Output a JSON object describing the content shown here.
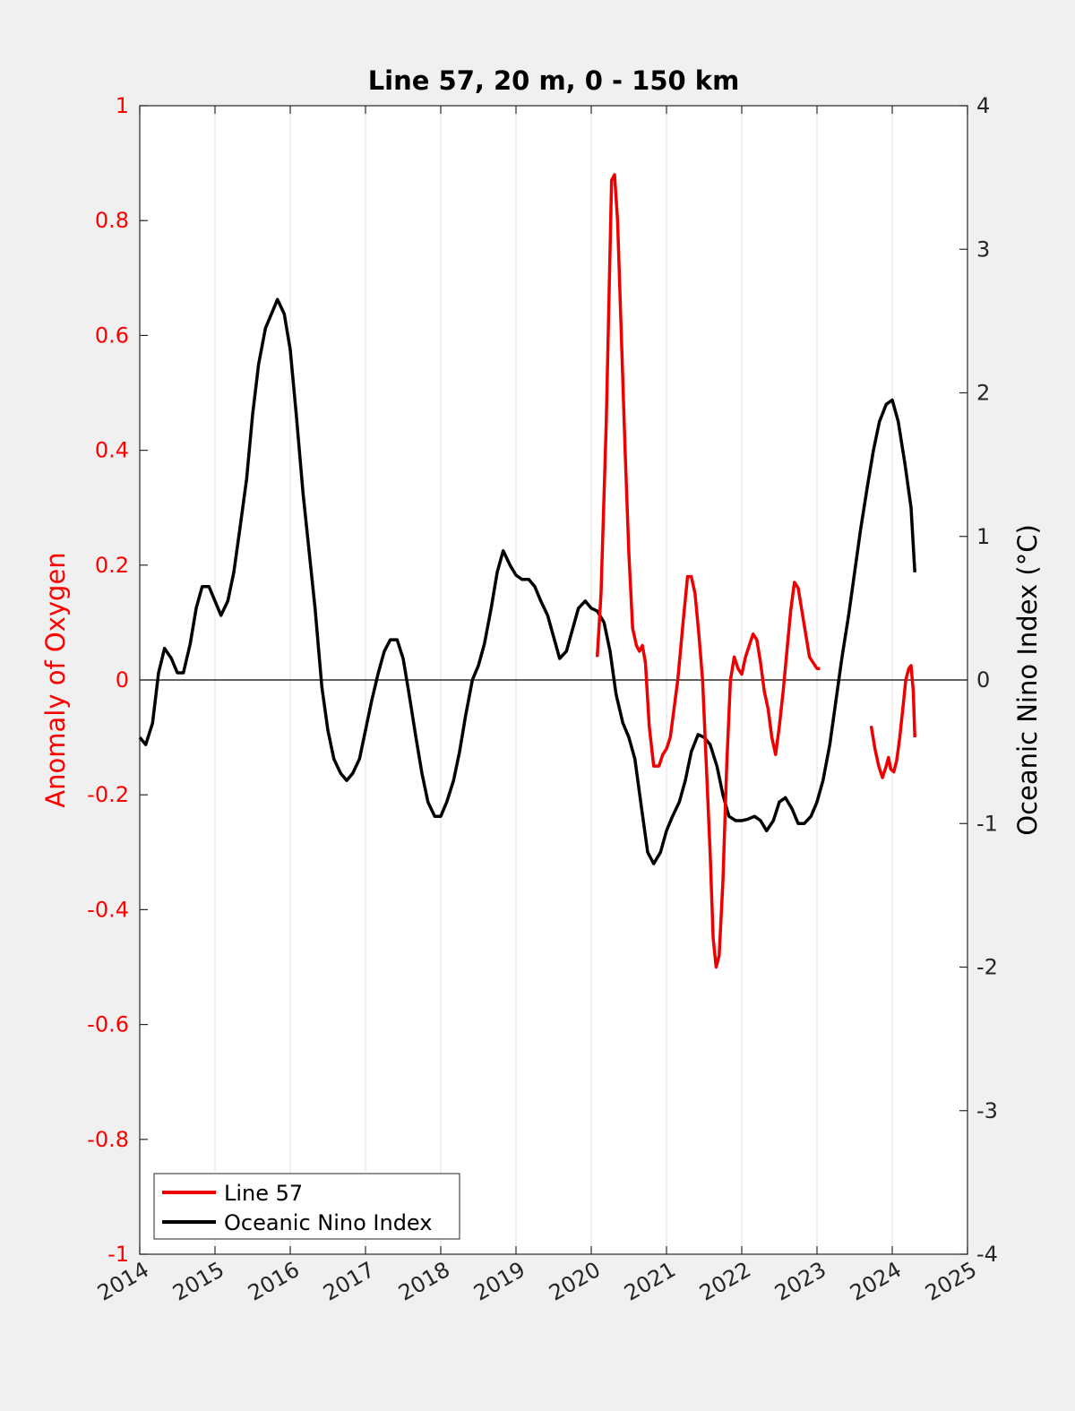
{
  "chart_data": {
    "type": "line",
    "title": "Line 57, 20 m, 0 - 150 km",
    "xlabel": "",
    "ylabel_left": "Anomaly of Oxygen",
    "ylabel_right": "Oceanic Nino Index (°C)",
    "xlim": [
      2014,
      2025
    ],
    "ylim_left": [
      -1,
      1
    ],
    "ylim_right": [
      -4,
      4
    ],
    "x_ticks": [
      "2014",
      "2015",
      "2016",
      "2017",
      "2018",
      "2019",
      "2020",
      "2021",
      "2022",
      "2023",
      "2024",
      "2025"
    ],
    "y_ticks_left": [
      "1",
      "0.8",
      "0.6",
      "0.4",
      "0.2",
      "0",
      "-0.2",
      "-0.4",
      "-0.6",
      "-0.8",
      "-1"
    ],
    "y_ticks_right": [
      "4",
      "3",
      "2",
      "1",
      "0",
      "-1",
      "-2",
      "-3",
      "-4"
    ],
    "grid": "vertical",
    "zero_line": true,
    "legend_position": "bottom-left",
    "colors": {
      "left_axis": "#ff0000",
      "line57": "#ee0000",
      "oni": "#000000",
      "background": "#f0f0f0",
      "plot_bg": "#ffffff"
    },
    "series": [
      {
        "name": "Line 57",
        "axis": "left",
        "color": "#ee0000",
        "segments": [
          {
            "x": [
              2020.08,
              2020.13,
              2020.2,
              2020.27,
              2020.31,
              2020.35,
              2020.4,
              2020.45,
              2020.5,
              2020.55,
              2020.6,
              2020.64,
              2020.68,
              2020.72,
              2020.77,
              2020.83,
              2020.9,
              2020.95,
              2021.0,
              2021.05,
              2021.1,
              2021.15,
              2021.22,
              2021.28,
              2021.33,
              2021.38,
              2021.43,
              2021.48,
              2021.53,
              2021.58,
              2021.62,
              2021.66,
              2021.7,
              2021.75,
              2021.8,
              2021.85,
              2021.9,
              2021.95,
              2022.0,
              2022.05,
              2022.1,
              2022.15,
              2022.2,
              2022.25,
              2022.3,
              2022.35,
              2022.4,
              2022.45,
              2022.5,
              2022.55,
              2022.6,
              2022.65,
              2022.7,
              2022.75,
              2022.8,
              2022.85,
              2022.9,
              2022.95,
              2023.0,
              2023.04
            ],
            "y": [
              0.04,
              0.15,
              0.45,
              0.87,
              0.88,
              0.8,
              0.6,
              0.4,
              0.22,
              0.09,
              0.06,
              0.05,
              0.06,
              0.03,
              -0.08,
              -0.15,
              -0.15,
              -0.13,
              -0.12,
              -0.1,
              -0.05,
              0.0,
              0.1,
              0.18,
              0.18,
              0.15,
              0.08,
              0.0,
              -0.15,
              -0.3,
              -0.45,
              -0.5,
              -0.48,
              -0.35,
              -0.15,
              0.0,
              0.04,
              0.02,
              0.01,
              0.04,
              0.06,
              0.08,
              0.07,
              0.03,
              -0.02,
              -0.05,
              -0.1,
              -0.13,
              -0.08,
              -0.02,
              0.05,
              0.12,
              0.17,
              0.16,
              0.12,
              0.08,
              0.04,
              0.03,
              0.02,
              0.02
            ]
          },
          {
            "x": [
              2023.72,
              2023.77,
              2023.82,
              2023.87,
              2023.92,
              2023.95,
              2023.98,
              2024.02,
              2024.06,
              2024.1,
              2024.14,
              2024.18,
              2024.22,
              2024.25,
              2024.28,
              2024.3
            ],
            "y": [
              -0.08,
              -0.12,
              -0.15,
              -0.17,
              -0.15,
              -0.135,
              -0.155,
              -0.16,
              -0.14,
              -0.1,
              -0.05,
              0.0,
              0.02,
              0.025,
              -0.02,
              -0.1
            ]
          }
        ]
      },
      {
        "name": "Oceanic Nino Index",
        "axis": "right",
        "color": "#000000",
        "x": [
          2014.0,
          2014.08,
          2014.17,
          2014.25,
          2014.33,
          2014.42,
          2014.5,
          2014.58,
          2014.67,
          2014.75,
          2014.83,
          2014.92,
          2015.0,
          2015.08,
          2015.17,
          2015.25,
          2015.33,
          2015.42,
          2015.5,
          2015.58,
          2015.67,
          2015.75,
          2015.83,
          2015.92,
          2016.0,
          2016.08,
          2016.17,
          2016.25,
          2016.33,
          2016.42,
          2016.5,
          2016.58,
          2016.67,
          2016.75,
          2016.83,
          2016.92,
          2017.0,
          2017.08,
          2017.17,
          2017.25,
          2017.33,
          2017.42,
          2017.5,
          2017.58,
          2017.67,
          2017.75,
          2017.83,
          2017.92,
          2018.0,
          2018.08,
          2018.17,
          2018.25,
          2018.33,
          2018.42,
          2018.5,
          2018.58,
          2018.67,
          2018.75,
          2018.83,
          2018.92,
          2019.0,
          2019.08,
          2019.17,
          2019.25,
          2019.33,
          2019.42,
          2019.5,
          2019.58,
          2019.67,
          2019.75,
          2019.83,
          2019.92,
          2020.0,
          2020.08,
          2020.17,
          2020.25,
          2020.33,
          2020.42,
          2020.5,
          2020.58,
          2020.67,
          2020.75,
          2020.83,
          2020.92,
          2021.0,
          2021.08,
          2021.17,
          2021.25,
          2021.33,
          2021.42,
          2021.5,
          2021.58,
          2021.67,
          2021.75,
          2021.83,
          2021.92,
          2022.0,
          2022.08,
          2022.17,
          2022.25,
          2022.33,
          2022.42,
          2022.5,
          2022.58,
          2022.67,
          2022.75,
          2022.83,
          2022.92,
          2023.0,
          2023.08,
          2023.17,
          2023.25,
          2023.33,
          2023.42,
          2023.5,
          2023.58,
          2023.67,
          2023.75,
          2023.83,
          2023.92,
          2024.0,
          2024.08,
          2024.17,
          2024.25,
          2024.3
        ],
        "y": [
          -0.4,
          -0.45,
          -0.3,
          0.05,
          0.22,
          0.15,
          0.05,
          0.05,
          0.25,
          0.5,
          0.65,
          0.65,
          0.55,
          0.45,
          0.55,
          0.75,
          1.05,
          1.4,
          1.85,
          2.2,
          2.45,
          2.55,
          2.65,
          2.55,
          2.3,
          1.85,
          1.3,
          0.9,
          0.5,
          -0.05,
          -0.35,
          -0.55,
          -0.65,
          -0.7,
          -0.65,
          -0.55,
          -0.35,
          -0.15,
          0.05,
          0.2,
          0.28,
          0.28,
          0.15,
          -0.1,
          -0.4,
          -0.65,
          -0.85,
          -0.95,
          -0.95,
          -0.85,
          -0.7,
          -0.5,
          -0.25,
          0.0,
          0.1,
          0.25,
          0.5,
          0.75,
          0.9,
          0.8,
          0.73,
          0.7,
          0.7,
          0.65,
          0.55,
          0.45,
          0.3,
          0.15,
          0.2,
          0.35,
          0.5,
          0.55,
          0.5,
          0.48,
          0.4,
          0.2,
          -0.1,
          -0.3,
          -0.4,
          -0.55,
          -0.9,
          -1.2,
          -1.28,
          -1.2,
          -1.05,
          -0.95,
          -0.85,
          -0.7,
          -0.5,
          -0.38,
          -0.4,
          -0.45,
          -0.6,
          -0.8,
          -0.95,
          -0.98,
          -0.98,
          -0.97,
          -0.95,
          -0.98,
          -1.05,
          -0.98,
          -0.85,
          -0.82,
          -0.9,
          -1.0,
          -1.0,
          -0.95,
          -0.85,
          -0.7,
          -0.45,
          -0.15,
          0.15,
          0.45,
          0.75,
          1.05,
          1.35,
          1.6,
          1.8,
          1.92,
          1.95,
          1.8,
          1.5,
          1.2,
          0.75
        ]
      }
    ]
  }
}
